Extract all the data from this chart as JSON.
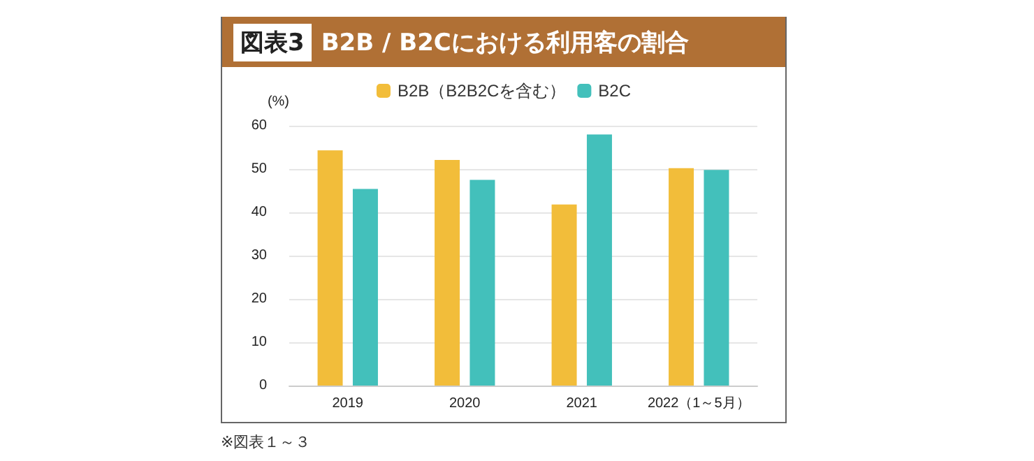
{
  "chart_data": {
    "type": "bar",
    "title": "図表3",
    "subtitle": "B2B / B2Cにおける利用客の割合",
    "ylabel": "(%)",
    "categories": [
      "2019",
      "2020",
      "2021",
      "2022（1～5月）"
    ],
    "series": [
      {
        "name": "B2B（B2B2Cを含む）",
        "color": "#f2bd3a",
        "values": [
          54.3,
          52.1,
          41.8,
          50.2
        ]
      },
      {
        "name": "B2C",
        "color": "#43c0bb",
        "values": [
          45.4,
          47.5,
          58.0,
          49.8
        ]
      }
    ],
    "ylim": [
      0,
      60
    ],
    "yticks": [
      0,
      10,
      20,
      30,
      40,
      50,
      60
    ],
    "grid": "y",
    "legend": "top",
    "annotations": [
      "※図表１～３"
    ]
  }
}
